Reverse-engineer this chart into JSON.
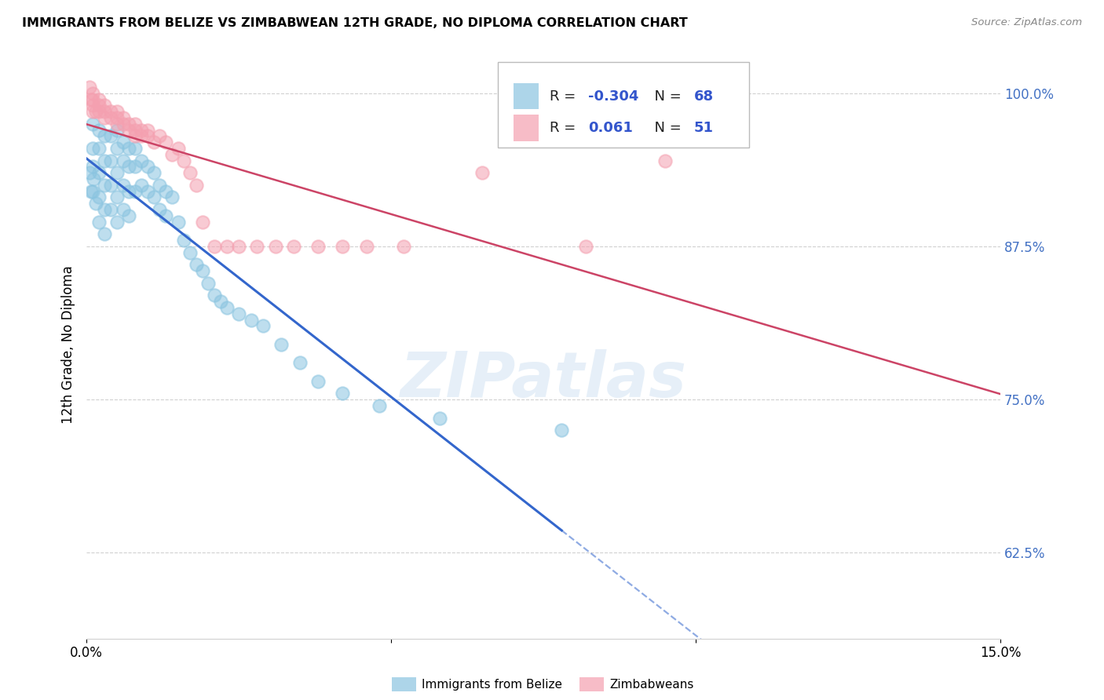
{
  "title": "IMMIGRANTS FROM BELIZE VS ZIMBABWEAN 12TH GRADE, NO DIPLOMA CORRELATION CHART",
  "source": "Source: ZipAtlas.com",
  "ylabel": "12th Grade, No Diploma",
  "xmin": 0.0,
  "xmax": 0.15,
  "ymin": 0.555,
  "ymax": 1.035,
  "yticks": [
    0.625,
    0.75,
    0.875,
    1.0
  ],
  "ytick_labels": [
    "62.5%",
    "75.0%",
    "87.5%",
    "100.0%"
  ],
  "legend_blue_r": "-0.304",
  "legend_blue_n": "68",
  "legend_pink_r": "0.061",
  "legend_pink_n": "51",
  "blue_color": "#8ac4e0",
  "pink_color": "#f4a0b0",
  "blue_line_color": "#3366cc",
  "pink_line_color": "#cc4466",
  "watermark": "ZIPatlas",
  "blue_points_x": [
    0.0005,
    0.0008,
    0.001,
    0.001,
    0.001,
    0.001,
    0.0012,
    0.0015,
    0.002,
    0.002,
    0.002,
    0.002,
    0.002,
    0.003,
    0.003,
    0.003,
    0.003,
    0.003,
    0.004,
    0.004,
    0.004,
    0.004,
    0.005,
    0.005,
    0.005,
    0.005,
    0.005,
    0.006,
    0.006,
    0.006,
    0.006,
    0.007,
    0.007,
    0.007,
    0.007,
    0.008,
    0.008,
    0.008,
    0.009,
    0.009,
    0.01,
    0.01,
    0.011,
    0.011,
    0.012,
    0.012,
    0.013,
    0.013,
    0.014,
    0.015,
    0.016,
    0.017,
    0.018,
    0.019,
    0.02,
    0.021,
    0.022,
    0.023,
    0.025,
    0.027,
    0.029,
    0.032,
    0.035,
    0.038,
    0.042,
    0.048,
    0.058,
    0.078
  ],
  "blue_points_y": [
    0.935,
    0.92,
    0.975,
    0.955,
    0.94,
    0.92,
    0.93,
    0.91,
    0.97,
    0.955,
    0.935,
    0.915,
    0.895,
    0.965,
    0.945,
    0.925,
    0.905,
    0.885,
    0.965,
    0.945,
    0.925,
    0.905,
    0.97,
    0.955,
    0.935,
    0.915,
    0.895,
    0.96,
    0.945,
    0.925,
    0.905,
    0.955,
    0.94,
    0.92,
    0.9,
    0.955,
    0.94,
    0.92,
    0.945,
    0.925,
    0.94,
    0.92,
    0.935,
    0.915,
    0.925,
    0.905,
    0.92,
    0.9,
    0.915,
    0.895,
    0.88,
    0.87,
    0.86,
    0.855,
    0.845,
    0.835,
    0.83,
    0.825,
    0.82,
    0.815,
    0.81,
    0.795,
    0.78,
    0.765,
    0.755,
    0.745,
    0.735,
    0.725
  ],
  "pink_points_x": [
    0.0005,
    0.0008,
    0.001,
    0.001,
    0.001,
    0.001,
    0.0015,
    0.002,
    0.002,
    0.002,
    0.003,
    0.003,
    0.003,
    0.004,
    0.004,
    0.005,
    0.005,
    0.005,
    0.006,
    0.006,
    0.007,
    0.007,
    0.008,
    0.008,
    0.008,
    0.009,
    0.009,
    0.01,
    0.01,
    0.011,
    0.012,
    0.013,
    0.014,
    0.015,
    0.016,
    0.017,
    0.018,
    0.019,
    0.021,
    0.023,
    0.025,
    0.028,
    0.031,
    0.034,
    0.038,
    0.042,
    0.046,
    0.052,
    0.065,
    0.082,
    0.095
  ],
  "pink_points_y": [
    1.005,
    0.995,
    1.0,
    0.995,
    0.99,
    0.985,
    0.985,
    0.995,
    0.99,
    0.985,
    0.99,
    0.985,
    0.98,
    0.985,
    0.98,
    0.985,
    0.98,
    0.975,
    0.98,
    0.975,
    0.975,
    0.97,
    0.975,
    0.97,
    0.965,
    0.97,
    0.965,
    0.97,
    0.965,
    0.96,
    0.965,
    0.96,
    0.95,
    0.955,
    0.945,
    0.935,
    0.925,
    0.895,
    0.875,
    0.875,
    0.875,
    0.875,
    0.875,
    0.875,
    0.875,
    0.875,
    0.875,
    0.875,
    0.935,
    0.875,
    0.945
  ]
}
